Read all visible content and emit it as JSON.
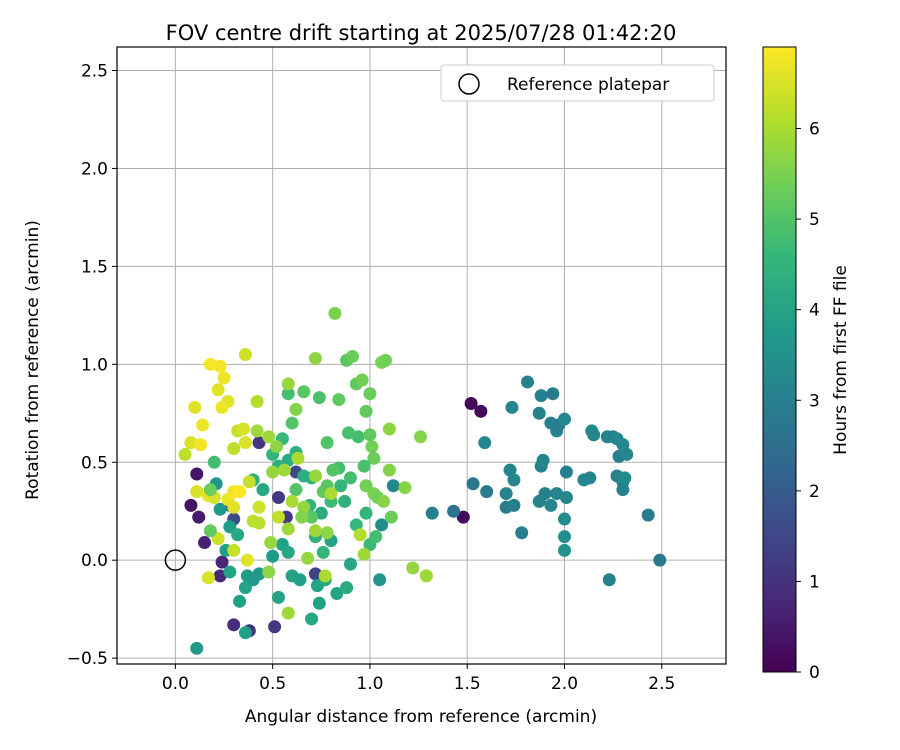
{
  "chart_data": {
    "type": "scatter",
    "title": "FOV centre drift starting at 2025/07/28 01:42:20",
    "xlabel": "Angular distance from reference (arcmin)",
    "ylabel": "Rotation from reference (arcmin)",
    "xlim": [
      -0.3,
      2.83
    ],
    "ylim": [
      -0.53,
      2.62
    ],
    "xticks": [
      0.0,
      0.5,
      1.0,
      1.5,
      2.0,
      2.5
    ],
    "xtick_labels": [
      "0.0",
      "0.5",
      "1.0",
      "1.5",
      "2.0",
      "2.5"
    ],
    "yticks": [
      -0.5,
      0.0,
      0.5,
      1.0,
      1.5,
      2.0,
      2.5
    ],
    "ytick_labels": [
      "−0.5",
      "0.0",
      "0.5",
      "1.0",
      "1.5",
      "2.0",
      "2.5"
    ],
    "grid": true,
    "legend": {
      "position": "top-right",
      "entries": [
        {
          "label": "Reference platepar",
          "marker": "open-circle"
        }
      ]
    },
    "reference_point": {
      "x": 0.0,
      "y": 0.0
    },
    "colorbar": {
      "label": "Hours from first FF file",
      "range": [
        0,
        6.9
      ],
      "ticks": [
        0,
        1,
        2,
        3,
        4,
        5,
        6
      ],
      "tick_labels": [
        "0",
        "1",
        "2",
        "3",
        "4",
        "5",
        "6"
      ],
      "colormap": "viridis",
      "colors": [
        "#440154",
        "#482878",
        "#3e4989",
        "#31688e",
        "#26828e",
        "#1f9e89",
        "#35b779",
        "#6ece58",
        "#b5de2b",
        "#fde725"
      ]
    },
    "points": [
      {
        "x": 1.52,
        "y": 0.8,
        "t": 0.1
      },
      {
        "x": 1.57,
        "y": 0.76,
        "t": 0.15
      },
      {
        "x": 1.48,
        "y": 0.22,
        "t": 0.2
      },
      {
        "x": 0.08,
        "y": 0.28,
        "t": 0.35
      },
      {
        "x": 0.11,
        "y": 0.44,
        "t": 0.4
      },
      {
        "x": 0.12,
        "y": 0.22,
        "t": 0.5
      },
      {
        "x": 0.15,
        "y": 0.09,
        "t": 0.6
      },
      {
        "x": 0.24,
        "y": -0.01,
        "t": 0.7
      },
      {
        "x": 0.23,
        "y": -0.08,
        "t": 0.8
      },
      {
        "x": 0.3,
        "y": -0.33,
        "t": 0.9
      },
      {
        "x": 0.38,
        "y": -0.36,
        "t": 1.0
      },
      {
        "x": 0.51,
        "y": -0.34,
        "t": 1.1
      },
      {
        "x": 0.43,
        "y": 0.6,
        "t": 1.1
      },
      {
        "x": 0.53,
        "y": 0.32,
        "t": 1.2
      },
      {
        "x": 0.57,
        "y": 0.22,
        "t": 1.2
      },
      {
        "x": 0.72,
        "y": -0.07,
        "t": 1.4
      },
      {
        "x": 0.62,
        "y": 0.45,
        "t": 1.5
      },
      {
        "x": 0.3,
        "y": 0.21,
        "t": 1.6
      },
      {
        "x": 0.28,
        "y": 0.28,
        "t": 1.7
      },
      {
        "x": 1.43,
        "y": 0.25,
        "t": 2.6
      },
      {
        "x": 1.53,
        "y": 0.39,
        "t": 2.8
      },
      {
        "x": 1.6,
        "y": 0.35,
        "t": 2.9
      },
      {
        "x": 1.7,
        "y": 0.27,
        "t": 2.9
      },
      {
        "x": 1.74,
        "y": 0.28,
        "t": 3.0
      },
      {
        "x": 1.78,
        "y": 0.14,
        "t": 3.0
      },
      {
        "x": 1.7,
        "y": 0.34,
        "t": 3.1
      },
      {
        "x": 1.72,
        "y": 0.46,
        "t": 3.1
      },
      {
        "x": 1.74,
        "y": 0.41,
        "t": 3.2
      },
      {
        "x": 1.59,
        "y": 0.6,
        "t": 3.2
      },
      {
        "x": 1.73,
        "y": 0.78,
        "t": 3.2
      },
      {
        "x": 1.81,
        "y": 0.91,
        "t": 3.0
      },
      {
        "x": 1.87,
        "y": 0.75,
        "t": 3.1
      },
      {
        "x": 1.88,
        "y": 0.84,
        "t": 3.0
      },
      {
        "x": 1.94,
        "y": 0.85,
        "t": 2.9
      },
      {
        "x": 1.93,
        "y": 0.7,
        "t": 3.0
      },
      {
        "x": 1.96,
        "y": 0.66,
        "t": 3.1
      },
      {
        "x": 1.97,
        "y": 0.69,
        "t": 2.9
      },
      {
        "x": 2.0,
        "y": 0.72,
        "t": 3.2
      },
      {
        "x": 1.88,
        "y": 0.48,
        "t": 3.1
      },
      {
        "x": 1.89,
        "y": 0.51,
        "t": 3.2
      },
      {
        "x": 1.87,
        "y": 0.3,
        "t": 3.1
      },
      {
        "x": 1.9,
        "y": 0.34,
        "t": 3.0
      },
      {
        "x": 1.93,
        "y": 0.28,
        "t": 3.2
      },
      {
        "x": 1.96,
        "y": 0.34,
        "t": 3.1
      },
      {
        "x": 2.01,
        "y": 0.45,
        "t": 3.0
      },
      {
        "x": 2.01,
        "y": 0.32,
        "t": 3.2
      },
      {
        "x": 2.0,
        "y": 0.21,
        "t": 3.3
      },
      {
        "x": 2.0,
        "y": 0.12,
        "t": 3.4
      },
      {
        "x": 2.0,
        "y": 0.05,
        "t": 3.5
      },
      {
        "x": 2.1,
        "y": 0.41,
        "t": 3.2
      },
      {
        "x": 2.13,
        "y": 0.42,
        "t": 3.1
      },
      {
        "x": 2.14,
        "y": 0.66,
        "t": 3.3
      },
      {
        "x": 2.15,
        "y": 0.64,
        "t": 3.2
      },
      {
        "x": 2.22,
        "y": 0.63,
        "t": 3.1
      },
      {
        "x": 2.25,
        "y": 0.63,
        "t": 3.0
      },
      {
        "x": 2.27,
        "y": 0.62,
        "t": 3.2
      },
      {
        "x": 2.27,
        "y": 0.43,
        "t": 3.1
      },
      {
        "x": 2.28,
        "y": 0.53,
        "t": 3.0
      },
      {
        "x": 2.3,
        "y": 0.59,
        "t": 3.2
      },
      {
        "x": 2.3,
        "y": 0.4,
        "t": 3.0
      },
      {
        "x": 2.3,
        "y": 0.36,
        "t": 3.1
      },
      {
        "x": 2.31,
        "y": 0.42,
        "t": 3.3
      },
      {
        "x": 2.32,
        "y": 0.54,
        "t": 3.2
      },
      {
        "x": 2.23,
        "y": -0.1,
        "t": 3.0
      },
      {
        "x": 2.43,
        "y": 0.23,
        "t": 2.9
      },
      {
        "x": 2.49,
        "y": 0.0,
        "t": 2.8
      },
      {
        "x": 1.32,
        "y": 0.24,
        "t": 3.0
      },
      {
        "x": 1.12,
        "y": 0.38,
        "t": 3.2
      },
      {
        "x": 1.06,
        "y": 0.18,
        "t": 3.4
      },
      {
        "x": 1.05,
        "y": -0.1,
        "t": 3.6
      },
      {
        "x": 0.11,
        "y": -0.45,
        "t": 3.7
      },
      {
        "x": 0.21,
        "y": 0.39,
        "t": 3.6
      },
      {
        "x": 0.23,
        "y": 0.26,
        "t": 3.7
      },
      {
        "x": 0.28,
        "y": 0.17,
        "t": 3.8
      },
      {
        "x": 0.26,
        "y": 0.05,
        "t": 3.9
      },
      {
        "x": 0.28,
        "y": -0.06,
        "t": 4.0
      },
      {
        "x": 0.32,
        "y": 0.13,
        "t": 4.1
      },
      {
        "x": 0.33,
        "y": -0.21,
        "t": 3.9
      },
      {
        "x": 0.37,
        "y": -0.08,
        "t": 3.8
      },
      {
        "x": 0.4,
        "y": -0.1,
        "t": 3.7
      },
      {
        "x": 0.36,
        "y": -0.14,
        "t": 4.0
      },
      {
        "x": 0.43,
        "y": -0.07,
        "t": 3.7
      },
      {
        "x": 0.36,
        "y": -0.37,
        "t": 3.9
      },
      {
        "x": 0.5,
        "y": 0.02,
        "t": 3.8
      },
      {
        "x": 0.53,
        "y": -0.19,
        "t": 4.0
      },
      {
        "x": 0.55,
        "y": 0.08,
        "t": 3.9
      },
      {
        "x": 0.58,
        "y": 0.04,
        "t": 4.1
      },
      {
        "x": 0.6,
        "y": -0.08,
        "t": 4.0
      },
      {
        "x": 0.64,
        "y": -0.1,
        "t": 3.9
      },
      {
        "x": 0.7,
        "y": -0.3,
        "t": 4.1
      },
      {
        "x": 0.73,
        "y": -0.13,
        "t": 4.0
      },
      {
        "x": 0.74,
        "y": -0.22,
        "t": 3.9
      },
      {
        "x": 0.77,
        "y": -0.1,
        "t": 4.1
      },
      {
        "x": 0.83,
        "y": -0.17,
        "t": 4.0
      },
      {
        "x": 0.88,
        "y": -0.14,
        "t": 4.2
      },
      {
        "x": 0.9,
        "y": -0.02,
        "t": 4.1
      },
      {
        "x": 0.8,
        "y": 0.1,
        "t": 4.0
      },
      {
        "x": 0.75,
        "y": 0.24,
        "t": 4.2
      },
      {
        "x": 0.7,
        "y": 0.42,
        "t": 4.3
      },
      {
        "x": 0.58,
        "y": 0.51,
        "t": 4.2
      },
      {
        "x": 0.53,
        "y": 0.48,
        "t": 4.3
      },
      {
        "x": 0.45,
        "y": 0.36,
        "t": 4.1
      },
      {
        "x": 0.4,
        "y": 0.41,
        "t": 4.4
      },
      {
        "x": 0.5,
        "y": 0.54,
        "t": 4.5
      },
      {
        "x": 0.55,
        "y": 0.62,
        "t": 4.6
      },
      {
        "x": 0.62,
        "y": 0.55,
        "t": 4.4
      },
      {
        "x": 0.66,
        "y": 0.43,
        "t": 4.3
      },
      {
        "x": 0.69,
        "y": 0.28,
        "t": 4.5
      },
      {
        "x": 0.72,
        "y": 0.12,
        "t": 4.4
      },
      {
        "x": 0.76,
        "y": 0.04,
        "t": 4.6
      },
      {
        "x": 0.8,
        "y": 0.3,
        "t": 4.7
      },
      {
        "x": 0.85,
        "y": 0.38,
        "t": 4.5
      },
      {
        "x": 0.87,
        "y": 0.3,
        "t": 4.4
      },
      {
        "x": 0.9,
        "y": 0.42,
        "t": 4.8
      },
      {
        "x": 0.93,
        "y": 0.18,
        "t": 4.6
      },
      {
        "x": 0.98,
        "y": 0.24,
        "t": 4.5
      },
      {
        "x": 1.0,
        "y": 0.08,
        "t": 4.7
      },
      {
        "x": 1.03,
        "y": 0.12,
        "t": 4.8
      },
      {
        "x": 0.97,
        "y": 0.48,
        "t": 4.9
      },
      {
        "x": 0.94,
        "y": 0.63,
        "t": 4.8
      },
      {
        "x": 0.89,
        "y": 0.65,
        "t": 4.9
      },
      {
        "x": 0.84,
        "y": 0.47,
        "t": 4.8
      },
      {
        "x": 0.78,
        "y": 0.6,
        "t": 5.0
      },
      {
        "x": 0.74,
        "y": 0.83,
        "t": 4.9
      },
      {
        "x": 0.66,
        "y": 0.86,
        "t": 5.1
      },
      {
        "x": 0.58,
        "y": 0.85,
        "t": 4.8
      },
      {
        "x": 0.6,
        "y": 0.7,
        "t": 5.0
      },
      {
        "x": 0.62,
        "y": 0.36,
        "t": 5.0
      },
      {
        "x": 0.7,
        "y": 0.22,
        "t": 5.1
      },
      {
        "x": 0.76,
        "y": 0.35,
        "t": 5.2
      },
      {
        "x": 0.78,
        "y": 0.38,
        "t": 5.1
      },
      {
        "x": 0.81,
        "y": 0.46,
        "t": 5.0
      },
      {
        "x": 0.84,
        "y": 0.82,
        "t": 5.2
      },
      {
        "x": 0.88,
        "y": 1.02,
        "t": 5.1
      },
      {
        "x": 0.91,
        "y": 1.04,
        "t": 5.3
      },
      {
        "x": 0.93,
        "y": 0.9,
        "t": 5.2
      },
      {
        "x": 0.96,
        "y": 0.92,
        "t": 5.4
      },
      {
        "x": 0.98,
        "y": 0.76,
        "t": 5.2
      },
      {
        "x": 1.0,
        "y": 0.85,
        "t": 5.3
      },
      {
        "x": 1.0,
        "y": 0.64,
        "t": 5.2
      },
      {
        "x": 1.01,
        "y": 0.58,
        "t": 5.4
      },
      {
        "x": 1.02,
        "y": 0.52,
        "t": 5.3
      },
      {
        "x": 0.98,
        "y": 0.38,
        "t": 5.4
      },
      {
        "x": 1.02,
        "y": 0.34,
        "t": 5.5
      },
      {
        "x": 1.04,
        "y": 0.32,
        "t": 5.4
      },
      {
        "x": 1.07,
        "y": 0.3,
        "t": 5.6
      },
      {
        "x": 1.1,
        "y": 0.46,
        "t": 5.6
      },
      {
        "x": 1.11,
        "y": 0.22,
        "t": 5.3
      },
      {
        "x": 1.06,
        "y": 1.01,
        "t": 5.5
      },
      {
        "x": 1.08,
        "y": 1.02,
        "t": 5.4
      },
      {
        "x": 1.1,
        "y": 0.67,
        "t": 5.7
      },
      {
        "x": 1.18,
        "y": 0.37,
        "t": 5.6
      },
      {
        "x": 1.22,
        "y": -0.04,
        "t": 5.8
      },
      {
        "x": 1.26,
        "y": 0.63,
        "t": 5.6
      },
      {
        "x": 1.29,
        "y": -0.08,
        "t": 5.9
      },
      {
        "x": 0.82,
        "y": 1.26,
        "t": 5.5
      },
      {
        "x": 0.72,
        "y": 1.03,
        "t": 5.7
      },
      {
        "x": 0.62,
        "y": 0.77,
        "t": 5.6
      },
      {
        "x": 0.58,
        "y": 0.9,
        "t": 5.8
      },
      {
        "x": 0.52,
        "y": 0.58,
        "t": 5.7
      },
      {
        "x": 0.48,
        "y": 0.63,
        "t": 5.9
      },
      {
        "x": 0.5,
        "y": 0.45,
        "t": 5.8
      },
      {
        "x": 0.56,
        "y": 0.46,
        "t": 5.9
      },
      {
        "x": 0.63,
        "y": 0.52,
        "t": 6.0
      },
      {
        "x": 0.66,
        "y": 0.27,
        "t": 5.8
      },
      {
        "x": 0.72,
        "y": 0.15,
        "t": 5.9
      },
      {
        "x": 0.78,
        "y": 0.14,
        "t": 5.7
      },
      {
        "x": 0.8,
        "y": 0.34,
        "t": 6.0
      },
      {
        "x": 0.72,
        "y": 0.43,
        "t": 5.8
      },
      {
        "x": 0.58,
        "y": 0.16,
        "t": 5.9
      },
      {
        "x": 0.6,
        "y": 0.3,
        "t": 6.0
      },
      {
        "x": 0.49,
        "y": 0.09,
        "t": 5.8
      },
      {
        "x": 0.48,
        "y": -0.06,
        "t": 5.7
      },
      {
        "x": 0.58,
        "y": -0.27,
        "t": 5.9
      },
      {
        "x": 0.77,
        "y": -0.08,
        "t": 6.0
      },
      {
        "x": 0.95,
        "y": 0.13,
        "t": 6.1
      },
      {
        "x": 0.97,
        "y": 0.03,
        "t": 5.9
      },
      {
        "x": 0.4,
        "y": 0.2,
        "t": 6.2
      },
      {
        "x": 0.42,
        "y": 0.81,
        "t": 6.1
      },
      {
        "x": 0.3,
        "y": 0.57,
        "t": 6.2
      },
      {
        "x": 0.32,
        "y": 0.66,
        "t": 6.3
      },
      {
        "x": 0.36,
        "y": 1.05,
        "t": 6.4
      },
      {
        "x": 0.38,
        "y": 0.4,
        "t": 6.3
      },
      {
        "x": 0.43,
        "y": 0.27,
        "t": 6.4
      },
      {
        "x": 0.36,
        "y": 0.6,
        "t": 6.5
      },
      {
        "x": 0.35,
        "y": 0.67,
        "t": 6.5
      },
      {
        "x": 0.27,
        "y": 0.81,
        "t": 6.6
      },
      {
        "x": 0.24,
        "y": 0.78,
        "t": 6.7
      },
      {
        "x": 0.22,
        "y": 0.87,
        "t": 6.6
      },
      {
        "x": 0.25,
        "y": 0.93,
        "t": 6.7
      },
      {
        "x": 0.23,
        "y": 0.99,
        "t": 6.8
      },
      {
        "x": 0.18,
        "y": 1.0,
        "t": 6.8
      },
      {
        "x": 0.1,
        "y": 0.78,
        "t": 6.6
      },
      {
        "x": 0.14,
        "y": 0.69,
        "t": 6.7
      },
      {
        "x": 0.08,
        "y": 0.6,
        "t": 6.5
      },
      {
        "x": 0.13,
        "y": 0.59,
        "t": 6.8
      },
      {
        "x": 0.05,
        "y": 0.54,
        "t": 6.2
      },
      {
        "x": 0.11,
        "y": 0.35,
        "t": 6.5
      },
      {
        "x": 0.17,
        "y": 0.33,
        "t": 6.6
      },
      {
        "x": 0.2,
        "y": 0.32,
        "t": 6.5
      },
      {
        "x": 0.27,
        "y": 0.31,
        "t": 6.7
      },
      {
        "x": 0.3,
        "y": 0.35,
        "t": 6.8
      },
      {
        "x": 0.3,
        "y": 0.27,
        "t": 6.6
      },
      {
        "x": 0.33,
        "y": 0.35,
        "t": 6.9
      },
      {
        "x": 0.22,
        "y": 0.11,
        "t": 6.4
      },
      {
        "x": 0.3,
        "y": 0.05,
        "t": 6.3
      },
      {
        "x": 0.37,
        "y": 0.0,
        "t": 6.6
      },
      {
        "x": 0.17,
        "y": -0.09,
        "t": 6.5
      },
      {
        "x": 0.53,
        "y": 0.22,
        "t": 6.3
      },
      {
        "x": 0.43,
        "y": 0.19,
        "t": 6.2
      },
      {
        "x": 0.18,
        "y": 0.15,
        "t": 5.2
      },
      {
        "x": 0.2,
        "y": 0.5,
        "t": 4.8
      },
      {
        "x": 0.42,
        "y": 0.66,
        "t": 5.9
      },
      {
        "x": 0.65,
        "y": 0.22,
        "t": 5.6
      },
      {
        "x": 0.68,
        "y": 0.01,
        "t": 5.8
      },
      {
        "x": 0.18,
        "y": 0.36,
        "t": 5.3
      }
    ]
  }
}
